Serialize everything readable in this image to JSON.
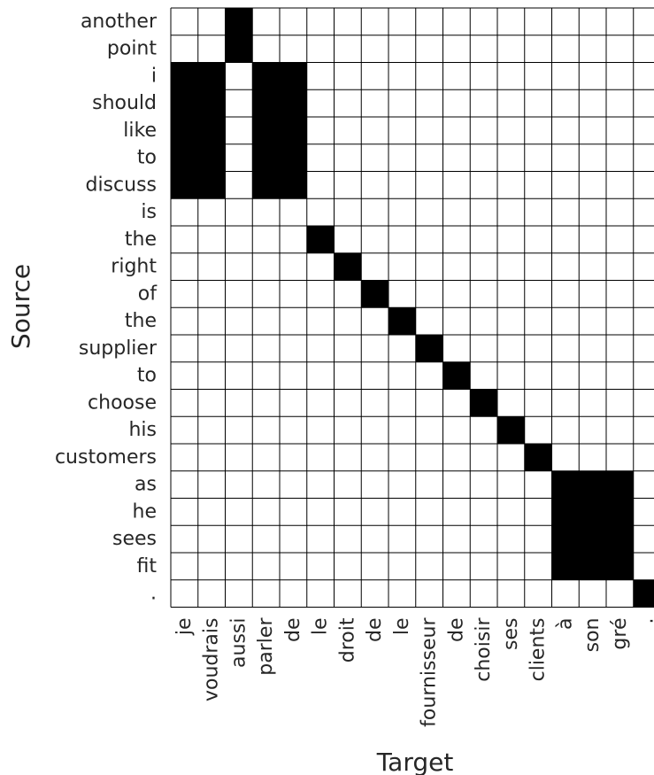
{
  "chart_data": {
    "type": "heatmap",
    "title": "",
    "xlabel": "Target",
    "ylabel": "Source",
    "x_categories": [
      "je",
      "voudrais",
      "aussi",
      "parler",
      "de",
      "le",
      "droit",
      "de",
      "le",
      "fournisseur",
      "de",
      "choisir",
      "ses",
      "clients",
      "à",
      "son",
      "gré",
      "."
    ],
    "y_categories": [
      "another",
      "point",
      "i",
      "should",
      "like",
      "to",
      "discuss",
      "is",
      "the",
      "right",
      "of",
      "the",
      "supplier",
      "to",
      "choose",
      "his",
      "customers",
      "as",
      "he",
      "sees",
      "fit",
      "."
    ],
    "values": [
      [
        0,
        0,
        1,
        0,
        0,
        0,
        0,
        0,
        0,
        0,
        0,
        0,
        0,
        0,
        0,
        0,
        0,
        0
      ],
      [
        0,
        0,
        1,
        0,
        0,
        0,
        0,
        0,
        0,
        0,
        0,
        0,
        0,
        0,
        0,
        0,
        0,
        0
      ],
      [
        1,
        1,
        0,
        1,
        1,
        0,
        0,
        0,
        0,
        0,
        0,
        0,
        0,
        0,
        0,
        0,
        0,
        0
      ],
      [
        1,
        1,
        0,
        1,
        1,
        0,
        0,
        0,
        0,
        0,
        0,
        0,
        0,
        0,
        0,
        0,
        0,
        0
      ],
      [
        1,
        1,
        0,
        1,
        1,
        0,
        0,
        0,
        0,
        0,
        0,
        0,
        0,
        0,
        0,
        0,
        0,
        0
      ],
      [
        1,
        1,
        0,
        1,
        1,
        0,
        0,
        0,
        0,
        0,
        0,
        0,
        0,
        0,
        0,
        0,
        0,
        0
      ],
      [
        1,
        1,
        0,
        1,
        1,
        0,
        0,
        0,
        0,
        0,
        0,
        0,
        0,
        0,
        0,
        0,
        0,
        0
      ],
      [
        0,
        0,
        0,
        0,
        0,
        0,
        0,
        0,
        0,
        0,
        0,
        0,
        0,
        0,
        0,
        0,
        0,
        0
      ],
      [
        0,
        0,
        0,
        0,
        0,
        1,
        0,
        0,
        0,
        0,
        0,
        0,
        0,
        0,
        0,
        0,
        0,
        0
      ],
      [
        0,
        0,
        0,
        0,
        0,
        0,
        1,
        0,
        0,
        0,
        0,
        0,
        0,
        0,
        0,
        0,
        0,
        0
      ],
      [
        0,
        0,
        0,
        0,
        0,
        0,
        0,
        1,
        0,
        0,
        0,
        0,
        0,
        0,
        0,
        0,
        0,
        0
      ],
      [
        0,
        0,
        0,
        0,
        0,
        0,
        0,
        0,
        1,
        0,
        0,
        0,
        0,
        0,
        0,
        0,
        0,
        0
      ],
      [
        0,
        0,
        0,
        0,
        0,
        0,
        0,
        0,
        0,
        1,
        0,
        0,
        0,
        0,
        0,
        0,
        0,
        0
      ],
      [
        0,
        0,
        0,
        0,
        0,
        0,
        0,
        0,
        0,
        0,
        1,
        0,
        0,
        0,
        0,
        0,
        0,
        0
      ],
      [
        0,
        0,
        0,
        0,
        0,
        0,
        0,
        0,
        0,
        0,
        0,
        1,
        0,
        0,
        0,
        0,
        0,
        0
      ],
      [
        0,
        0,
        0,
        0,
        0,
        0,
        0,
        0,
        0,
        0,
        0,
        0,
        1,
        0,
        0,
        0,
        0,
        0
      ],
      [
        0,
        0,
        0,
        0,
        0,
        0,
        0,
        0,
        0,
        0,
        0,
        0,
        0,
        1,
        0,
        0,
        0,
        0
      ],
      [
        0,
        0,
        0,
        0,
        0,
        0,
        0,
        0,
        0,
        0,
        0,
        0,
        0,
        0,
        1,
        1,
        1,
        0
      ],
      [
        0,
        0,
        0,
        0,
        0,
        0,
        0,
        0,
        0,
        0,
        0,
        0,
        0,
        0,
        1,
        1,
        1,
        0
      ],
      [
        0,
        0,
        0,
        0,
        0,
        0,
        0,
        0,
        0,
        0,
        0,
        0,
        0,
        0,
        1,
        1,
        1,
        0
      ],
      [
        0,
        0,
        0,
        0,
        0,
        0,
        0,
        0,
        0,
        0,
        0,
        0,
        0,
        0,
        1,
        1,
        1,
        0
      ],
      [
        0,
        0,
        0,
        0,
        0,
        0,
        0,
        0,
        0,
        0,
        0,
        0,
        0,
        0,
        0,
        0,
        0,
        1
      ]
    ],
    "legend": false,
    "colors": {
      "aligned": "#000000",
      "unaligned": "#ffffff",
      "grid": "#000000",
      "text": "#262626"
    }
  }
}
